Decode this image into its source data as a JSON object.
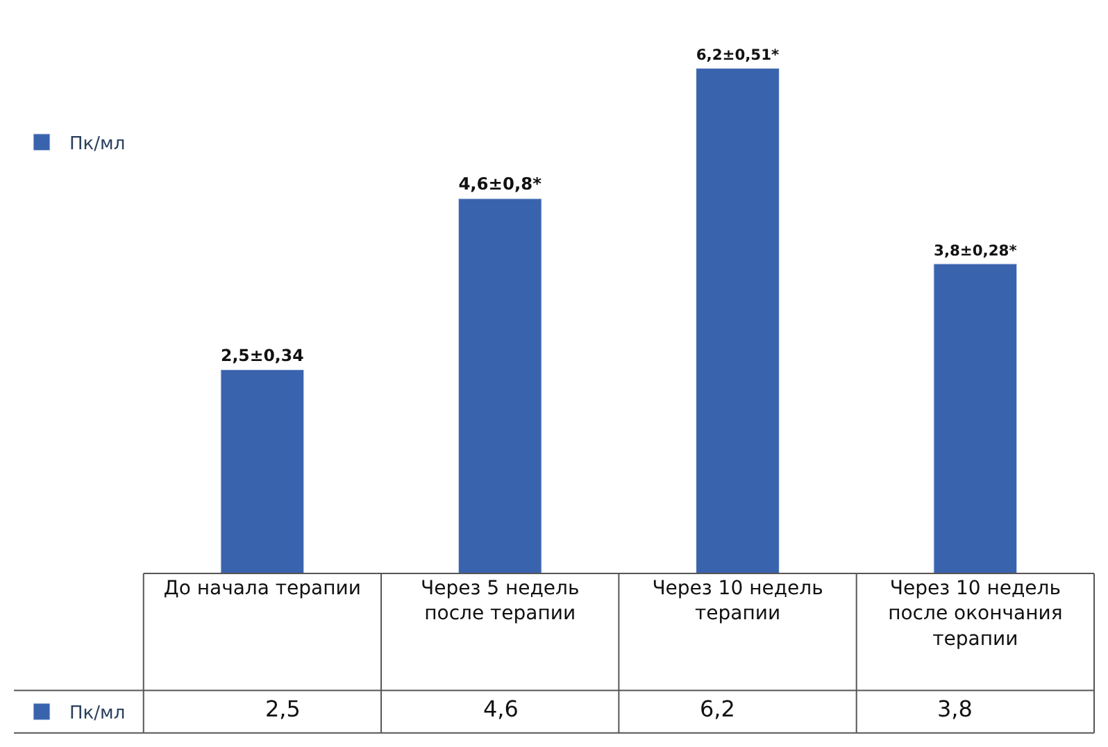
{
  "chart_data": {
    "type": "bar",
    "categories": [
      "До начала терапии",
      "Через 5 недель после терапии",
      "Через 10 недель терапии",
      "Через 10 недель после окончания терапии"
    ],
    "series": [
      {
        "name": "Пк/мл",
        "color": "#3a63ae",
        "values": [
          2.5,
          4.6,
          6.2,
          3.8
        ],
        "value_labels": [
          "2,5±0,34",
          "4,6±0,8*",
          "6,2±0,51*",
          "3,8±0,28*"
        ]
      }
    ],
    "annotations": [
      "2,5",
      "4,6",
      "6,2",
      "3,8"
    ],
    "tick_labels": "x",
    "legend": "top left",
    "data_labels": true
  }
}
